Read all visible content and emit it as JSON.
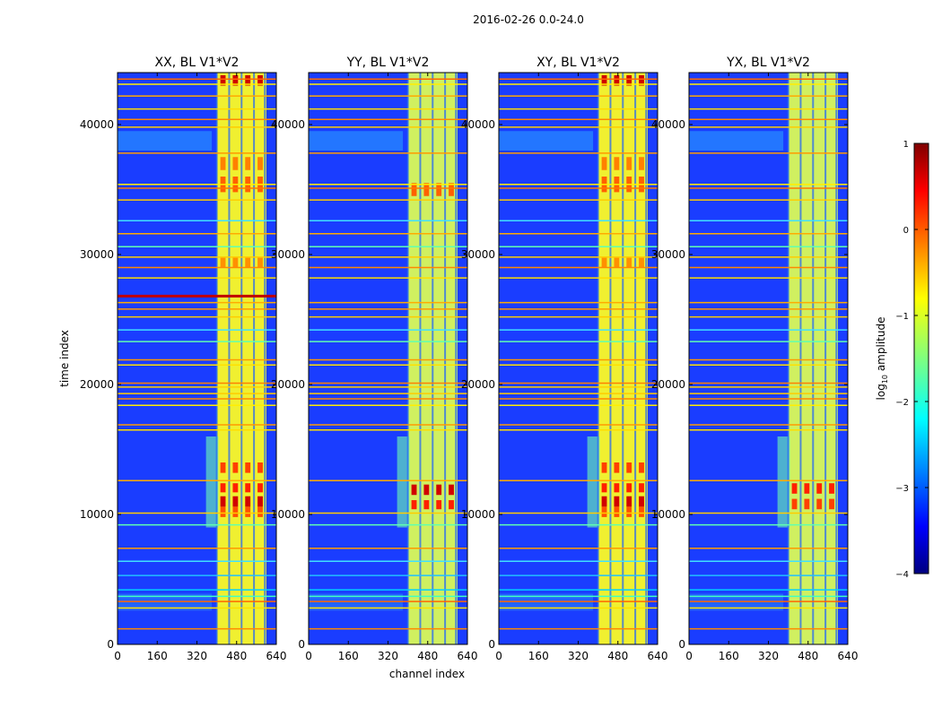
{
  "figure_title": "2016-02-26 0.0-24.0",
  "colors": {
    "background": "#ffffff",
    "plot_bg": "#1a3dff"
  },
  "chart_data": {
    "type": "heatmap",
    "title": "2016-02-26 0.0-24.0",
    "xlabel": "channel index",
    "ylabel": "time index",
    "xlim": [
      0,
      640
    ],
    "ylim": [
      0,
      44000
    ],
    "x_ticks": [
      0,
      160,
      320,
      480,
      640
    ],
    "y_ticks": [
      0,
      10000,
      20000,
      30000,
      40000
    ],
    "colorbar": {
      "label": "log10 amplitude",
      "label_main": "log",
      "label_sub": "10",
      "label_rest": " amplitude",
      "range": [
        -4,
        1
      ],
      "ticks": [
        1,
        0,
        -1,
        -2,
        -3,
        -4
      ],
      "tick_labels": [
        "1",
        "0",
        "−1",
        "−2",
        "−3",
        "−4"
      ],
      "colormap": "jet"
    },
    "panels": [
      {
        "title": "XX, BL V1*V2",
        "band_start_channel": 400,
        "band_end_channel": 600
      },
      {
        "title": "YY, BL V1*V2",
        "band_start_channel": 400,
        "band_end_channel": 600
      },
      {
        "title": "XY, BL V1*V2",
        "band_start_channel": 400,
        "band_end_channel": 600
      },
      {
        "title": "YX, BL V1*V2",
        "band_start_channel": 400,
        "band_end_channel": 600
      }
    ]
  }
}
